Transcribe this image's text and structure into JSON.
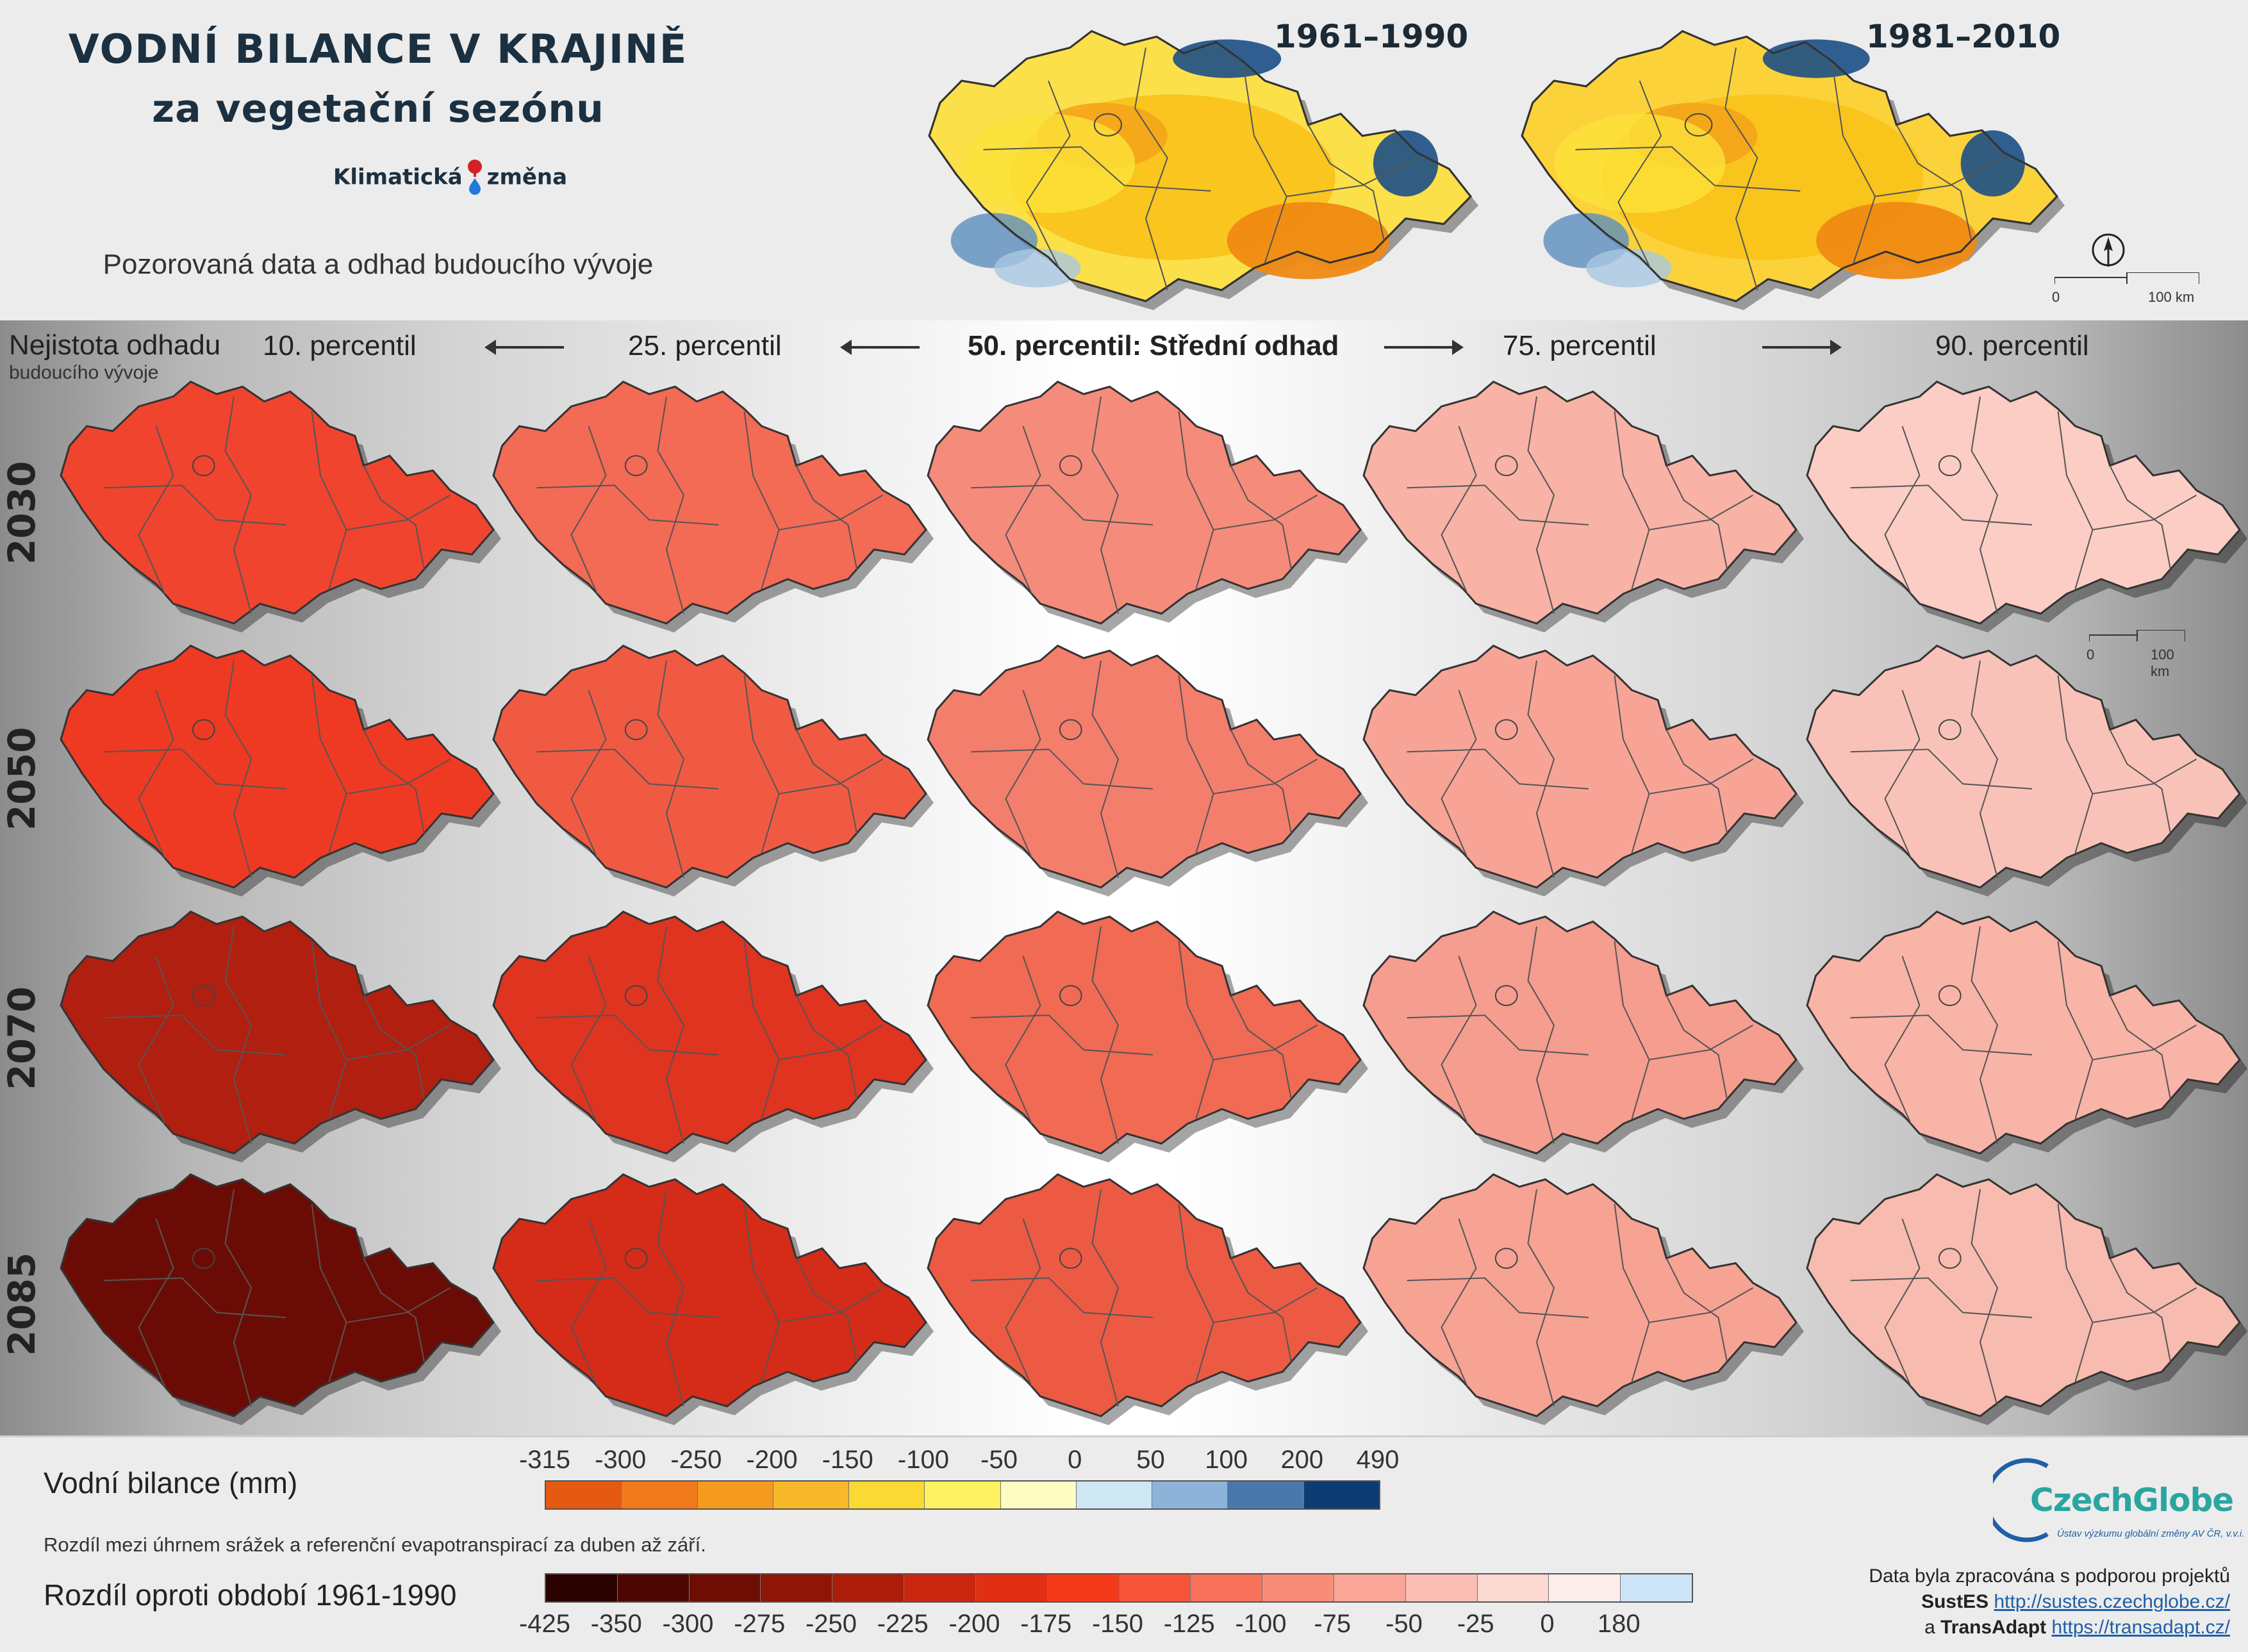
{
  "header": {
    "title": "VODNÍ BILANCE V KRAJINĚ",
    "subtitle": "za vegetační sezónu",
    "logo_left": "Klimatická",
    "logo_right": "změna",
    "observed_caption": "Pozorovaná data a odhad budoucího vývoje"
  },
  "historical": [
    {
      "label": "1961–1990"
    },
    {
      "label": "1981–2010"
    }
  ],
  "scale": {
    "zero": "0",
    "hundred": "100 km"
  },
  "uncertainty": {
    "title": "Nejistota odhadu",
    "subtitle": "budoucího vývoje"
  },
  "columns": [
    "10. percentil",
    "25. percentil",
    "50. percentil: Střední odhad",
    "75. percentil",
    "90. percentil"
  ],
  "rows": [
    "2030",
    "2050",
    "2070",
    "2085"
  ],
  "map_colors": [
    [
      "#f0442e",
      "#f36a55",
      "#f58b7b",
      "#f8b2a6",
      "#fbcdc4"
    ],
    [
      "#ee3a22",
      "#f05a43",
      "#f47e6c",
      "#f7a497",
      "#f9c2b8"
    ],
    [
      "#b01f10",
      "#df3420",
      "#f06a54",
      "#f59d8f",
      "#f8b4a7"
    ],
    [
      "#6a0c05",
      "#d42c18",
      "#ec5a43",
      "#f6a394",
      "#f8bbaf"
    ]
  ],
  "legend": {
    "balance_title": "Vodní bilance (mm)",
    "balance_desc": "Rozdíl mezi úhrnem srážek a referenční evapotranspirací za duben až září.",
    "balance_ticks": [
      "-315",
      "-300",
      "-250",
      "-200",
      "-150",
      "-100",
      "-50",
      "0",
      "50",
      "100",
      "200",
      "490"
    ],
    "balance_colors": [
      "#e35a10",
      "#f07a1a",
      "#f49a1f",
      "#f7b82a",
      "#fbd934",
      "#fdf261",
      "#fdfcc2",
      "#cfe7f3",
      "#8db3d8",
      "#4a78ad",
      "#0d3c73"
    ],
    "diff_title": "Rozdíl oproti období 1961-1990",
    "diff_ticks": [
      "-425",
      "-350",
      "-300",
      "-275",
      "-250",
      "-225",
      "-200",
      "-175",
      "-150",
      "-125",
      "-100",
      "-75",
      "-50",
      "-25",
      "0",
      "180"
    ],
    "diff_colors": [
      "#2a0300",
      "#4d0702",
      "#6e0d04",
      "#8f1507",
      "#ac1e0a",
      "#c8260e",
      "#e02f13",
      "#f53a1a",
      "#f7553a",
      "#f7715a",
      "#f88c79",
      "#f9a699",
      "#fabeb4",
      "#fcd9d3",
      "#fdeeec",
      "#cde3f7"
    ]
  },
  "footer": {
    "brand": "CzechGlobe",
    "brand_sub": "Ústav výzkumu globální změny AV ČR, v.v.i.",
    "credit_line1": "Data byla zpracována s podporou projektů",
    "project1": "SustES",
    "project1_url": "http://sustes.czechglobe.cz/",
    "and1": "a",
    "project2": "TransAdapt",
    "project2_url": "https://transadapt.cz/"
  }
}
